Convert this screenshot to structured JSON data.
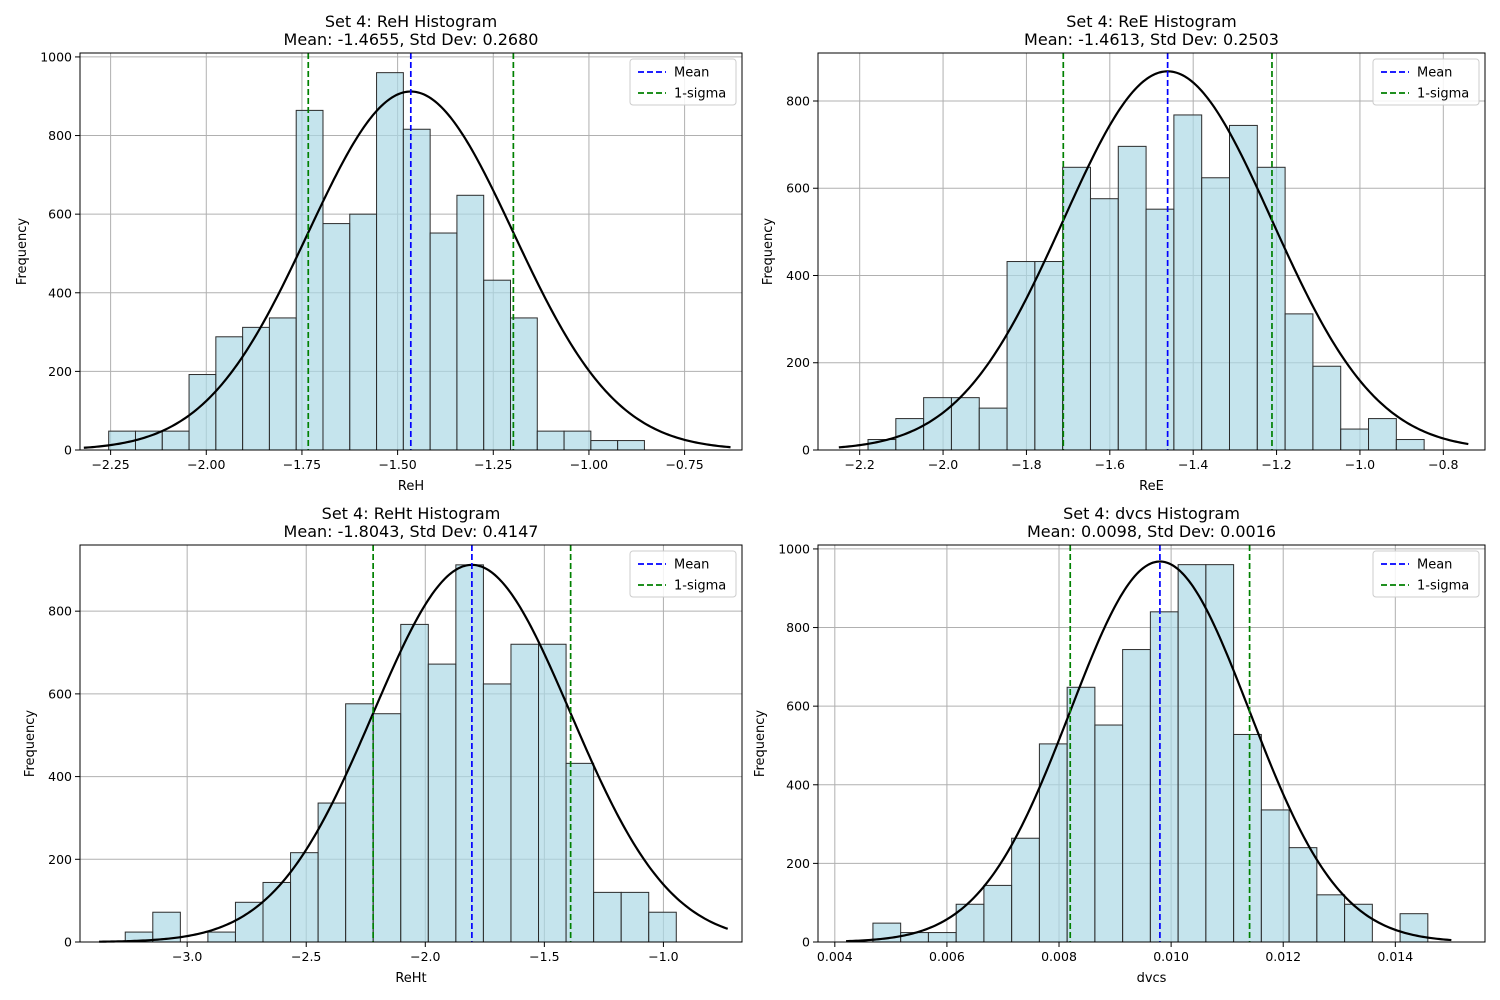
{
  "chart_data": [
    {
      "type": "bar",
      "title": "Set 4: ReH Histogram",
      "subtitle": "Mean: -1.4655, Std Dev: 0.2680",
      "xlabel": "ReH",
      "ylabel": "Frequency",
      "xlim": [
        -2.33,
        -0.6
      ],
      "ylim": [
        0,
        1010
      ],
      "xticks": [
        -2.25,
        -2.0,
        -1.75,
        -1.5,
        -1.25,
        -1.0,
        -0.75
      ],
      "xtick_labels": [
        "−2.25",
        "−2.00",
        "−1.75",
        "−1.50",
        "−1.25",
        "−1.00",
        "−0.75"
      ],
      "yticks": [
        0,
        200,
        400,
        600,
        800,
        1000
      ],
      "ytick_labels": [
        "0",
        "200",
        "400",
        "600",
        "800",
        "1000"
      ],
      "grid": true,
      "legend": "top-right",
      "bins": {
        "start": -2.255,
        "width": 0.07,
        "values": [
          48,
          48,
          48,
          192,
          288,
          312,
          336,
          864,
          576,
          600,
          960,
          816,
          552,
          648,
          432,
          336,
          48,
          48,
          24,
          24
        ]
      },
      "mean": -1.4655,
      "std": 0.268,
      "curve": {
        "range": [
          -2.32,
          -0.63
        ],
        "peak": 912
      },
      "series": [
        {
          "name": "Mean",
          "value": -1.4655,
          "color": "#0000ff"
        },
        {
          "name": "1-sigma",
          "values": [
            -1.7335,
            -1.1975
          ],
          "color": "#008000"
        }
      ]
    },
    {
      "type": "bar",
      "title": "Set 4: ReE Histogram",
      "subtitle": "Mean: -1.4613, Std Dev: 0.2503",
      "xlabel": "ReE",
      "ylabel": "Frequency",
      "xlim": [
        -2.3,
        -0.7
      ],
      "ylim": [
        0,
        910
      ],
      "xticks": [
        -2.2,
        -2.0,
        -1.8,
        -1.6,
        -1.4,
        -1.2,
        -1.0,
        -0.8
      ],
      "xtick_labels": [
        "−2.2",
        "−2.0",
        "−1.8",
        "−1.6",
        "−1.4",
        "−1.2",
        "−1.0",
        "−0.8"
      ],
      "yticks": [
        0,
        200,
        400,
        600,
        800
      ],
      "ytick_labels": [
        "0",
        "200",
        "400",
        "600",
        "800"
      ],
      "grid": true,
      "legend": "top-right",
      "bins": {
        "start": -2.18,
        "width": 0.0667,
        "values": [
          24,
          72,
          120,
          120,
          96,
          432,
          432,
          648,
          576,
          696,
          552,
          768,
          624,
          744,
          648,
          312,
          192,
          48,
          72,
          24
        ]
      },
      "mean": -1.4613,
      "std": 0.2503,
      "curve": {
        "range": [
          -2.25,
          -0.74
        ],
        "peak": 868
      },
      "series": [
        {
          "name": "Mean",
          "value": -1.4613,
          "color": "#0000ff"
        },
        {
          "name": "1-sigma",
          "values": [
            -1.7116,
            -1.211
          ],
          "color": "#008000"
        }
      ]
    },
    {
      "type": "bar",
      "title": "Set 4: ReHt Histogram",
      "subtitle": "Mean: -1.8043, Std Dev: 0.4147",
      "xlabel": "ReHt",
      "ylabel": "Frequency",
      "xlim": [
        -3.45,
        -0.67
      ],
      "ylim": [
        0,
        960
      ],
      "xticks": [
        -3.0,
        -2.5,
        -2.0,
        -1.5,
        -1.0
      ],
      "xtick_labels": [
        "−3.0",
        "−2.5",
        "−2.0",
        "−1.5",
        "−1.0"
      ],
      "yticks": [
        0,
        200,
        400,
        600,
        800
      ],
      "ytick_labels": [
        "0",
        "200",
        "400",
        "600",
        "800"
      ],
      "grid": true,
      "legend": "top-right",
      "bins": {
        "start": -3.26,
        "width": 0.1157,
        "values": [
          24,
          72,
          0,
          24,
          96,
          144,
          216,
          336,
          576,
          552,
          768,
          672,
          912,
          624,
          720,
          720,
          432,
          120,
          120,
          72
        ]
      },
      "mean": -1.8043,
      "std": 0.4147,
      "curve": {
        "range": [
          -3.37,
          -0.73
        ],
        "peak": 912
      },
      "series": [
        {
          "name": "Mean",
          "value": -1.8043,
          "color": "#0000ff"
        },
        {
          "name": "1-sigma",
          "values": [
            -2.219,
            -1.3896
          ],
          "color": "#008000"
        }
      ]
    },
    {
      "type": "bar",
      "title": "Set 4: dvcs Histogram",
      "subtitle": "Mean: 0.0098, Std Dev: 0.0016",
      "xlabel": "dvcs",
      "ylabel": "Frequency",
      "xlim": [
        0.0037,
        0.0156
      ],
      "ylim": [
        0,
        1010
      ],
      "xticks": [
        0.004,
        0.006,
        0.008,
        0.01,
        0.012,
        0.014
      ],
      "xtick_labels": [
        "0.004",
        "0.006",
        "0.008",
        "0.010",
        "0.012",
        "0.014"
      ],
      "yticks": [
        0,
        200,
        400,
        600,
        800,
        1000
      ],
      "ytick_labels": [
        "0",
        "200",
        "400",
        "600",
        "800",
        "1000"
      ],
      "grid": true,
      "legend": "top-right",
      "bins": {
        "start": 0.00468,
        "width": 0.000495,
        "values": [
          48,
          24,
          24,
          96,
          144,
          264,
          504,
          648,
          552,
          744,
          840,
          960,
          960,
          528,
          336,
          240,
          120,
          96,
          0,
          72
        ]
      },
      "mean": 0.0098,
      "std": 0.0016,
      "curve": {
        "range": [
          0.0042,
          0.015
        ],
        "peak": 968
      },
      "series": [
        {
          "name": "Mean",
          "value": 0.0098,
          "color": "#0000ff"
        },
        {
          "name": "1-sigma",
          "values": [
            0.0082,
            0.0114
          ],
          "color": "#008000"
        }
      ]
    }
  ],
  "colors": {
    "bar_fill": "#add8e6",
    "bar_edge": "#2b2b2b",
    "curve": "#000000",
    "grid": "#b0b0b0"
  }
}
